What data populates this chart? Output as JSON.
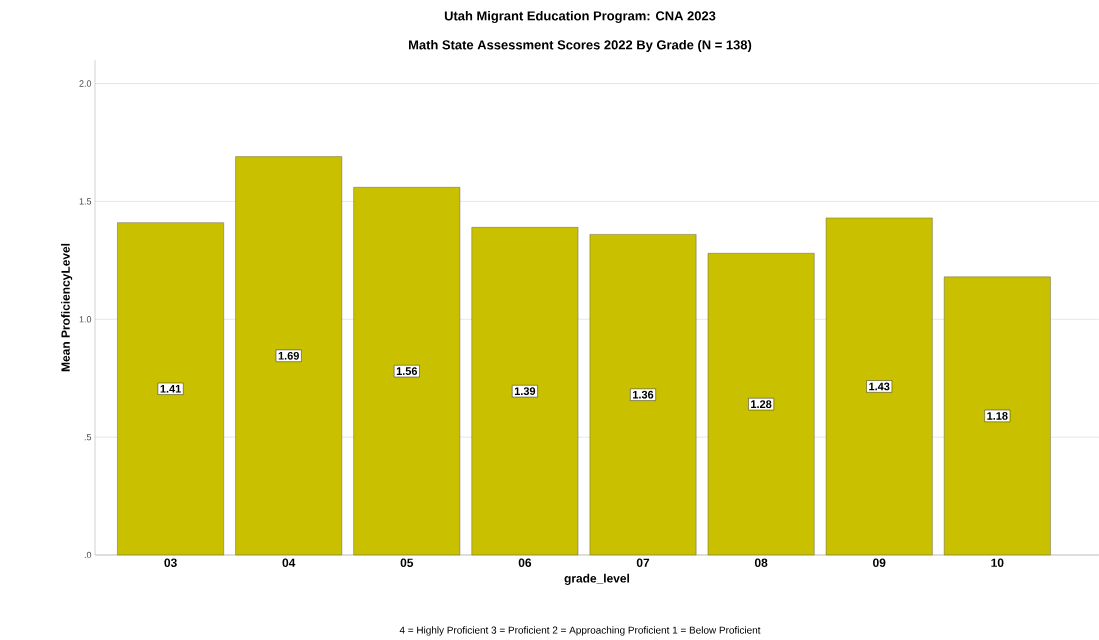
{
  "chart_data": {
    "type": "bar",
    "title": "Utah Migrant Education Program: CNA 2023",
    "subtitle": "Math State Assessment Scores 2022 By Grade (N = 138)",
    "xlabel": "grade_level",
    "ylabel": "Mean ProficiencyLevel",
    "categories": [
      "03",
      "04",
      "05",
      "06",
      "07",
      "08",
      "09",
      "10"
    ],
    "values": [
      1.41,
      1.69,
      1.56,
      1.39,
      1.36,
      1.28,
      1.43,
      1.18
    ],
    "color": "#c9c000",
    "data_labels": true,
    "grid": "y",
    "ylim": [
      0,
      2.1
    ],
    "yticks": [
      {
        "value": 0,
        "label": ".0"
      },
      {
        "value": 0.5,
        "label": ".5"
      },
      {
        "value": 1.0,
        "label": "1.0"
      },
      {
        "value": 1.5,
        "label": "1.5"
      },
      {
        "value": 2.0,
        "label": "2.0"
      }
    ],
    "annotations": [
      "4 = Highly Proficient  3 = Proficient   2 = Approaching Proficient   1 = Below Proficient"
    ]
  }
}
